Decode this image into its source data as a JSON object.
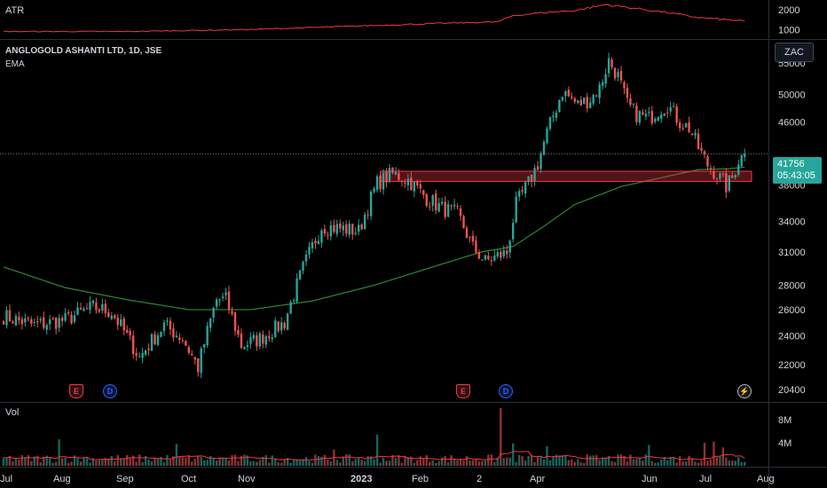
{
  "panes": {
    "atr_label": "ATR",
    "title": "ANGLOGOLD ASHANTI LTD, 1D, JSE",
    "ema_label": "EMA",
    "vol_label": "Vol",
    "currency": "ZAC"
  },
  "price_badge": {
    "price": "41756",
    "countdown": "05:43:05",
    "color": "#26a69a"
  },
  "events": [
    {
      "type": "earnings",
      "label": "E",
      "icon": "earnings-flag-icon"
    },
    {
      "type": "dividend",
      "label": "D",
      "icon": "dividend-circle-icon"
    },
    {
      "type": "earnings",
      "label": "E",
      "icon": "earnings-flag-icon"
    },
    {
      "type": "dividend",
      "label": "D",
      "icon": "dividend-circle-icon"
    },
    {
      "type": "split",
      "label": "⚡",
      "icon": "lightning-icon"
    }
  ],
  "colors": {
    "up": "#26a69a",
    "down": "#ef5350",
    "ema": "#2e7d32",
    "atr": "#f23645",
    "zone": "#f23645"
  },
  "chart_data": [
    {
      "type": "candlestick",
      "title": "ANGLOGOLD ASHANTI LTD, 1D, JSE",
      "x_tick_labels": [
        "Jul",
        "Aug",
        "Sep",
        "Oct",
        "Nov",
        "2023",
        "Feb",
        "2",
        "Apr",
        "Jun",
        "Jul",
        "Aug"
      ],
      "y_tick_labels": [
        "55000",
        "50000",
        "46000",
        "41756",
        "38000",
        "34000",
        "31000",
        "28000",
        "26000",
        "24000",
        "22000",
        "20400"
      ],
      "y_scale": "log",
      "ylim": [
        19800,
        57000
      ],
      "grid": false,
      "last_price": 41756,
      "support_zone": [
        38400,
        39600
      ],
      "anchors": [
        [
          0,
          25500
        ],
        [
          10,
          24800
        ],
        [
          20,
          25200
        ],
        [
          29,
          26200
        ],
        [
          35,
          25800
        ],
        [
          44,
          22500
        ],
        [
          52,
          24800
        ],
        [
          58,
          23800
        ],
        [
          63,
          21800
        ],
        [
          69,
          26800
        ],
        [
          72,
          26800
        ],
        [
          77,
          23300
        ],
        [
          83,
          23800
        ],
        [
          91,
          25000
        ],
        [
          97,
          29500
        ],
        [
          103,
          33500
        ],
        [
          109,
          33300
        ],
        [
          115,
          33000
        ],
        [
          121,
          38200
        ],
        [
          126,
          39300
        ],
        [
          131,
          38600
        ],
        [
          137,
          36500
        ],
        [
          142,
          35400
        ],
        [
          147,
          34800
        ],
        [
          152,
          31400
        ],
        [
          156,
          30100
        ],
        [
          160,
          30600
        ],
        [
          163,
          30900
        ],
        [
          166,
          35800
        ],
        [
          170,
          38200
        ],
        [
          173,
          40500
        ],
        [
          176,
          44500
        ],
        [
          181,
          50500
        ],
        [
          186,
          48500
        ],
        [
          190,
          49300
        ],
        [
          193,
          51000
        ],
        [
          196,
          55400
        ],
        [
          199,
          52800
        ],
        [
          202,
          48500
        ],
        [
          205,
          47100
        ],
        [
          209,
          46500
        ],
        [
          212,
          47700
        ],
        [
          215,
          48500
        ],
        [
          219,
          46000
        ],
        [
          222,
          45200
        ],
        [
          225,
          42500
        ],
        [
          228,
          40400
        ],
        [
          231,
          39200
        ],
        [
          234,
          37800
        ],
        [
          236,
          38800
        ],
        [
          238,
          41000
        ],
        [
          240,
          41756
        ]
      ],
      "ema": [
        [
          0,
          29600
        ],
        [
          20,
          27800
        ],
        [
          40,
          26800
        ],
        [
          60,
          26000
        ],
        [
          80,
          26000
        ],
        [
          100,
          26700
        ],
        [
          120,
          28000
        ],
        [
          140,
          29700
        ],
        [
          155,
          31000
        ],
        [
          165,
          31500
        ],
        [
          175,
          33500
        ],
        [
          185,
          35800
        ],
        [
          200,
          37800
        ],
        [
          215,
          39000
        ],
        [
          225,
          39800
        ],
        [
          235,
          39900
        ],
        [
          240,
          40100
        ]
      ]
    },
    {
      "type": "line",
      "title": "ATR",
      "y_tick_labels": [
        "2000",
        "1000"
      ],
      "ylim": [
        700,
        2300
      ],
      "points": [
        [
          0,
          900
        ],
        [
          40,
          900
        ],
        [
          80,
          1000
        ],
        [
          110,
          1150
        ],
        [
          140,
          1300
        ],
        [
          160,
          1380
        ],
        [
          165,
          1700
        ],
        [
          175,
          1850
        ],
        [
          185,
          1950
        ],
        [
          195,
          2250
        ],
        [
          205,
          2050
        ],
        [
          215,
          1850
        ],
        [
          225,
          1600
        ],
        [
          235,
          1480
        ],
        [
          240,
          1420
        ]
      ]
    },
    {
      "type": "bar",
      "title": "Vol",
      "y_tick_labels": [
        "8M",
        "4M"
      ],
      "ylim": [
        0,
        10000000
      ],
      "spikes": [
        [
          18,
          4600000
        ],
        [
          56,
          3800000
        ],
        [
          107,
          2800000
        ],
        [
          121,
          5400000
        ],
        [
          161,
          10000000
        ],
        [
          165,
          3900000
        ],
        [
          176,
          3400000
        ],
        [
          209,
          3600000
        ],
        [
          227,
          4000000
        ],
        [
          230,
          4200000
        ],
        [
          233,
          3200000
        ]
      ]
    }
  ]
}
